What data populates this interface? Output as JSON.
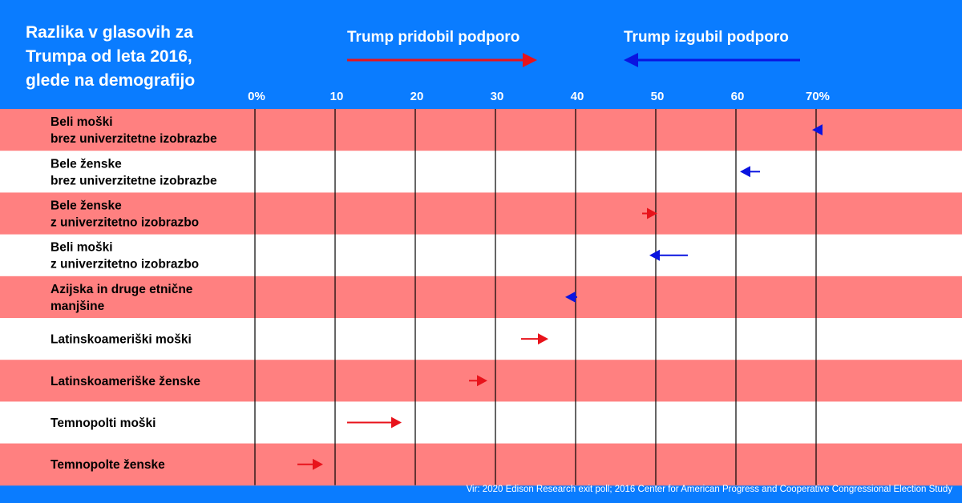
{
  "chart_data": {
    "type": "arrow",
    "title": [
      "Razlika v glasovih za",
      "Trumpa od leta 2016,",
      "glede na demografijo"
    ],
    "legend": {
      "gain": {
        "label": "Trump pridobil podporo",
        "color": "#e8131b"
      },
      "loss": {
        "label": "Trump izgubil podporo",
        "color": "#0a14e0"
      }
    },
    "x_ticks": [
      "0%",
      "10",
      "20",
      "30",
      "40",
      "50",
      "60",
      "70%"
    ],
    "xlim": [
      0,
      70
    ],
    "categories": [
      [
        "Beli moški",
        "brez univerzitetne izobrazbe"
      ],
      [
        "Bele ženske",
        "brez univerzitetne izobrazbe"
      ],
      [
        "Bele ženske",
        "z univerzitetno izobrazbo"
      ],
      [
        "Beli moški",
        "z univerzitetno izobrazbo"
      ],
      [
        "Azijska in druge etnične",
        "manjšine"
      ],
      [
        "Latinskoameriški  moški"
      ],
      [
        "Latinskoameriške ženske"
      ],
      [
        "Temnopolti moški"
      ],
      [
        "Temnopolte ženske"
      ]
    ],
    "series": [
      {
        "from": 70.5,
        "to": 69.5,
        "direction": "loss"
      },
      {
        "from": 63.0,
        "to": 60.5,
        "direction": "loss"
      },
      {
        "from": 48.3,
        "to": 50.2,
        "direction": "gain"
      },
      {
        "from": 54.0,
        "to": 49.2,
        "direction": "loss"
      },
      {
        "from": 40.2,
        "to": 38.7,
        "direction": "loss"
      },
      {
        "from": 33.2,
        "to": 36.6,
        "direction": "gain"
      },
      {
        "from": 26.7,
        "to": 29.0,
        "direction": "gain"
      },
      {
        "from": 11.5,
        "to": 18.3,
        "direction": "gain"
      },
      {
        "from": 5.3,
        "to": 8.5,
        "direction": "gain"
      }
    ],
    "row_colors": [
      "#ff8080",
      "#ffffff"
    ],
    "background_color": "#0a7cff",
    "grid": true,
    "source": "Vir: 2020 Edison Research exit poll; 2016 Center for American Progress and Cooperative Congressional Election Study"
  }
}
